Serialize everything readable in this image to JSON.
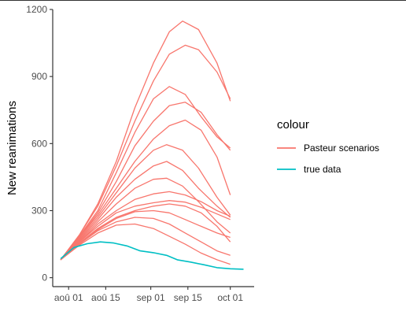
{
  "chart_data": {
    "type": "line",
    "title": "",
    "xlabel": "",
    "ylabel": "New reanimations",
    "x_ticks": [
      "2020-08-01",
      "2020-08-15",
      "2020-09-01",
      "2020-09-15",
      "2020-10-01"
    ],
    "x_tick_labels": [
      "aoû 01",
      "aoû 15",
      "sep 01",
      "sep 15",
      "oct 01"
    ],
    "xlim": [
      "2020-07-26",
      "2020-10-10"
    ],
    "y_ticks": [
      0,
      300,
      600,
      900,
      1200
    ],
    "y_tick_labels": [
      "0",
      "300",
      "600",
      "900",
      "1200"
    ],
    "ylim": [
      -40,
      1200
    ],
    "grid": false,
    "legend": {
      "title": "colour",
      "placement": "right",
      "entries": [
        {
          "label": "Pasteur scenarios",
          "color": "#F8766D"
        },
        {
          "label": "true data",
          "color": "#00BFC4"
        }
      ]
    },
    "series": [
      {
        "name": "true data",
        "color": "#00BFC4",
        "points": [
          [
            "2020-07-29",
            85
          ],
          [
            "2020-08-03",
            135
          ],
          [
            "2020-08-08",
            152
          ],
          [
            "2020-08-13",
            160
          ],
          [
            "2020-08-18",
            155
          ],
          [
            "2020-08-23",
            142
          ],
          [
            "2020-08-28",
            120
          ],
          [
            "2020-09-02",
            112
          ],
          [
            "2020-09-07",
            100
          ],
          [
            "2020-09-11",
            80
          ],
          [
            "2020-09-16",
            70
          ],
          [
            "2020-09-21",
            58
          ],
          [
            "2020-09-26",
            45
          ],
          [
            "2020-10-01",
            40
          ],
          [
            "2020-10-06",
            38
          ]
        ]
      },
      {
        "name": "",
        "color": "#F8766D",
        "points": [
          [
            "2020-07-29",
            80
          ],
          [
            "2020-08-05",
            190
          ],
          [
            "2020-08-12",
            330
          ],
          [
            "2020-08-19",
            520
          ],
          [
            "2020-08-26",
            760
          ],
          [
            "2020-09-02",
            960
          ],
          [
            "2020-09-08",
            1100
          ],
          [
            "2020-09-13",
            1148
          ],
          [
            "2020-09-19",
            1110
          ],
          [
            "2020-09-26",
            960
          ],
          [
            "2020-10-01",
            790
          ]
        ]
      },
      {
        "name": "",
        "color": "#F8766D",
        "points": [
          [
            "2020-07-29",
            80
          ],
          [
            "2020-08-05",
            190
          ],
          [
            "2020-08-12",
            320
          ],
          [
            "2020-08-19",
            500
          ],
          [
            "2020-08-26",
            700
          ],
          [
            "2020-09-02",
            880
          ],
          [
            "2020-09-08",
            1000
          ],
          [
            "2020-09-14",
            1040
          ],
          [
            "2020-09-19",
            1020
          ],
          [
            "2020-09-26",
            920
          ],
          [
            "2020-10-01",
            800
          ]
        ]
      },
      {
        "name": "",
        "color": "#F8766D",
        "points": [
          [
            "2020-07-29",
            80
          ],
          [
            "2020-08-05",
            185
          ],
          [
            "2020-08-12",
            300
          ],
          [
            "2020-08-19",
            470
          ],
          [
            "2020-08-26",
            650
          ],
          [
            "2020-09-02",
            800
          ],
          [
            "2020-09-08",
            855
          ],
          [
            "2020-09-14",
            820
          ],
          [
            "2020-09-20",
            720
          ],
          [
            "2020-09-26",
            630
          ],
          [
            "2020-10-01",
            580
          ]
        ]
      },
      {
        "name": "",
        "color": "#F8766D",
        "points": [
          [
            "2020-07-29",
            80
          ],
          [
            "2020-08-05",
            180
          ],
          [
            "2020-08-12",
            290
          ],
          [
            "2020-08-19",
            430
          ],
          [
            "2020-08-26",
            590
          ],
          [
            "2020-09-02",
            700
          ],
          [
            "2020-09-08",
            770
          ],
          [
            "2020-09-14",
            785
          ],
          [
            "2020-09-20",
            740
          ],
          [
            "2020-09-26",
            640
          ],
          [
            "2020-10-01",
            570
          ]
        ]
      },
      {
        "name": "",
        "color": "#F8766D",
        "points": [
          [
            "2020-07-29",
            80
          ],
          [
            "2020-08-05",
            180
          ],
          [
            "2020-08-12",
            280
          ],
          [
            "2020-08-19",
            400
          ],
          [
            "2020-08-26",
            520
          ],
          [
            "2020-09-02",
            620
          ],
          [
            "2020-09-08",
            680
          ],
          [
            "2020-09-14",
            705
          ],
          [
            "2020-09-20",
            660
          ],
          [
            "2020-09-26",
            540
          ],
          [
            "2020-10-01",
            370
          ]
        ]
      },
      {
        "name": "",
        "color": "#F8766D",
        "points": [
          [
            "2020-07-29",
            80
          ],
          [
            "2020-08-05",
            175
          ],
          [
            "2020-08-12",
            270
          ],
          [
            "2020-08-19",
            380
          ],
          [
            "2020-08-26",
            490
          ],
          [
            "2020-09-02",
            570
          ],
          [
            "2020-09-07",
            595
          ],
          [
            "2020-09-13",
            570
          ],
          [
            "2020-09-19",
            490
          ],
          [
            "2020-09-26",
            360
          ],
          [
            "2020-10-01",
            280
          ]
        ]
      },
      {
        "name": "",
        "color": "#F8766D",
        "points": [
          [
            "2020-07-29",
            80
          ],
          [
            "2020-08-05",
            170
          ],
          [
            "2020-08-12",
            260
          ],
          [
            "2020-08-19",
            360
          ],
          [
            "2020-08-26",
            440
          ],
          [
            "2020-09-02",
            500
          ],
          [
            "2020-09-07",
            520
          ],
          [
            "2020-09-13",
            480
          ],
          [
            "2020-09-19",
            400
          ],
          [
            "2020-09-26",
            320
          ],
          [
            "2020-10-01",
            270
          ]
        ]
      },
      {
        "name": "",
        "color": "#F8766D",
        "points": [
          [
            "2020-07-29",
            80
          ],
          [
            "2020-08-05",
            165
          ],
          [
            "2020-08-12",
            250
          ],
          [
            "2020-08-19",
            330
          ],
          [
            "2020-08-26",
            400
          ],
          [
            "2020-09-02",
            440
          ],
          [
            "2020-09-07",
            445
          ],
          [
            "2020-09-13",
            410
          ],
          [
            "2020-09-19",
            340
          ],
          [
            "2020-09-26",
            250
          ],
          [
            "2020-10-01",
            200
          ]
        ]
      },
      {
        "name": "",
        "color": "#F8766D",
        "points": [
          [
            "2020-07-29",
            80
          ],
          [
            "2020-08-05",
            160
          ],
          [
            "2020-08-12",
            240
          ],
          [
            "2020-08-19",
            300
          ],
          [
            "2020-08-26",
            350
          ],
          [
            "2020-09-02",
            375
          ],
          [
            "2020-09-08",
            385
          ],
          [
            "2020-09-14",
            370
          ],
          [
            "2020-09-20",
            340
          ],
          [
            "2020-09-26",
            300
          ],
          [
            "2020-10-01",
            275
          ]
        ]
      },
      {
        "name": "",
        "color": "#F8766D",
        "points": [
          [
            "2020-07-29",
            80
          ],
          [
            "2020-08-05",
            160
          ],
          [
            "2020-08-12",
            230
          ],
          [
            "2020-08-19",
            290
          ],
          [
            "2020-08-26",
            320
          ],
          [
            "2020-09-02",
            335
          ],
          [
            "2020-09-08",
            345
          ],
          [
            "2020-09-14",
            338
          ],
          [
            "2020-09-20",
            315
          ],
          [
            "2020-09-26",
            285
          ],
          [
            "2020-10-01",
            260
          ]
        ]
      },
      {
        "name": "",
        "color": "#F8766D",
        "points": [
          [
            "2020-07-29",
            80
          ],
          [
            "2020-08-05",
            155
          ],
          [
            "2020-08-12",
            220
          ],
          [
            "2020-08-19",
            270
          ],
          [
            "2020-08-26",
            300
          ],
          [
            "2020-09-02",
            320
          ],
          [
            "2020-09-08",
            330
          ],
          [
            "2020-09-14",
            320
          ],
          [
            "2020-09-20",
            290
          ],
          [
            "2020-09-26",
            230
          ],
          [
            "2020-10-01",
            160
          ]
        ]
      },
      {
        "name": "",
        "color": "#F8766D",
        "points": [
          [
            "2020-07-29",
            80
          ],
          [
            "2020-08-05",
            150
          ],
          [
            "2020-08-12",
            215
          ],
          [
            "2020-08-19",
            265
          ],
          [
            "2020-08-26",
            295
          ],
          [
            "2020-09-02",
            300
          ],
          [
            "2020-09-08",
            290
          ],
          [
            "2020-09-14",
            260
          ],
          [
            "2020-09-20",
            230
          ],
          [
            "2020-09-26",
            200
          ],
          [
            "2020-10-01",
            180
          ]
        ]
      },
      {
        "name": "",
        "color": "#F8766D",
        "points": [
          [
            "2020-07-29",
            80
          ],
          [
            "2020-08-05",
            150
          ],
          [
            "2020-08-12",
            210
          ],
          [
            "2020-08-19",
            250
          ],
          [
            "2020-08-26",
            270
          ],
          [
            "2020-09-02",
            265
          ],
          [
            "2020-09-08",
            240
          ],
          [
            "2020-09-14",
            200
          ],
          [
            "2020-09-20",
            160
          ],
          [
            "2020-09-26",
            120
          ],
          [
            "2020-10-01",
            100
          ]
        ]
      },
      {
        "name": "",
        "color": "#F8766D",
        "points": [
          [
            "2020-07-29",
            80
          ],
          [
            "2020-08-05",
            145
          ],
          [
            "2020-08-12",
            200
          ],
          [
            "2020-08-19",
            235
          ],
          [
            "2020-08-26",
            240
          ],
          [
            "2020-09-02",
            220
          ],
          [
            "2020-09-08",
            185
          ],
          [
            "2020-09-14",
            150
          ],
          [
            "2020-09-20",
            110
          ],
          [
            "2020-09-26",
            80
          ],
          [
            "2020-10-01",
            60
          ]
        ]
      }
    ]
  }
}
